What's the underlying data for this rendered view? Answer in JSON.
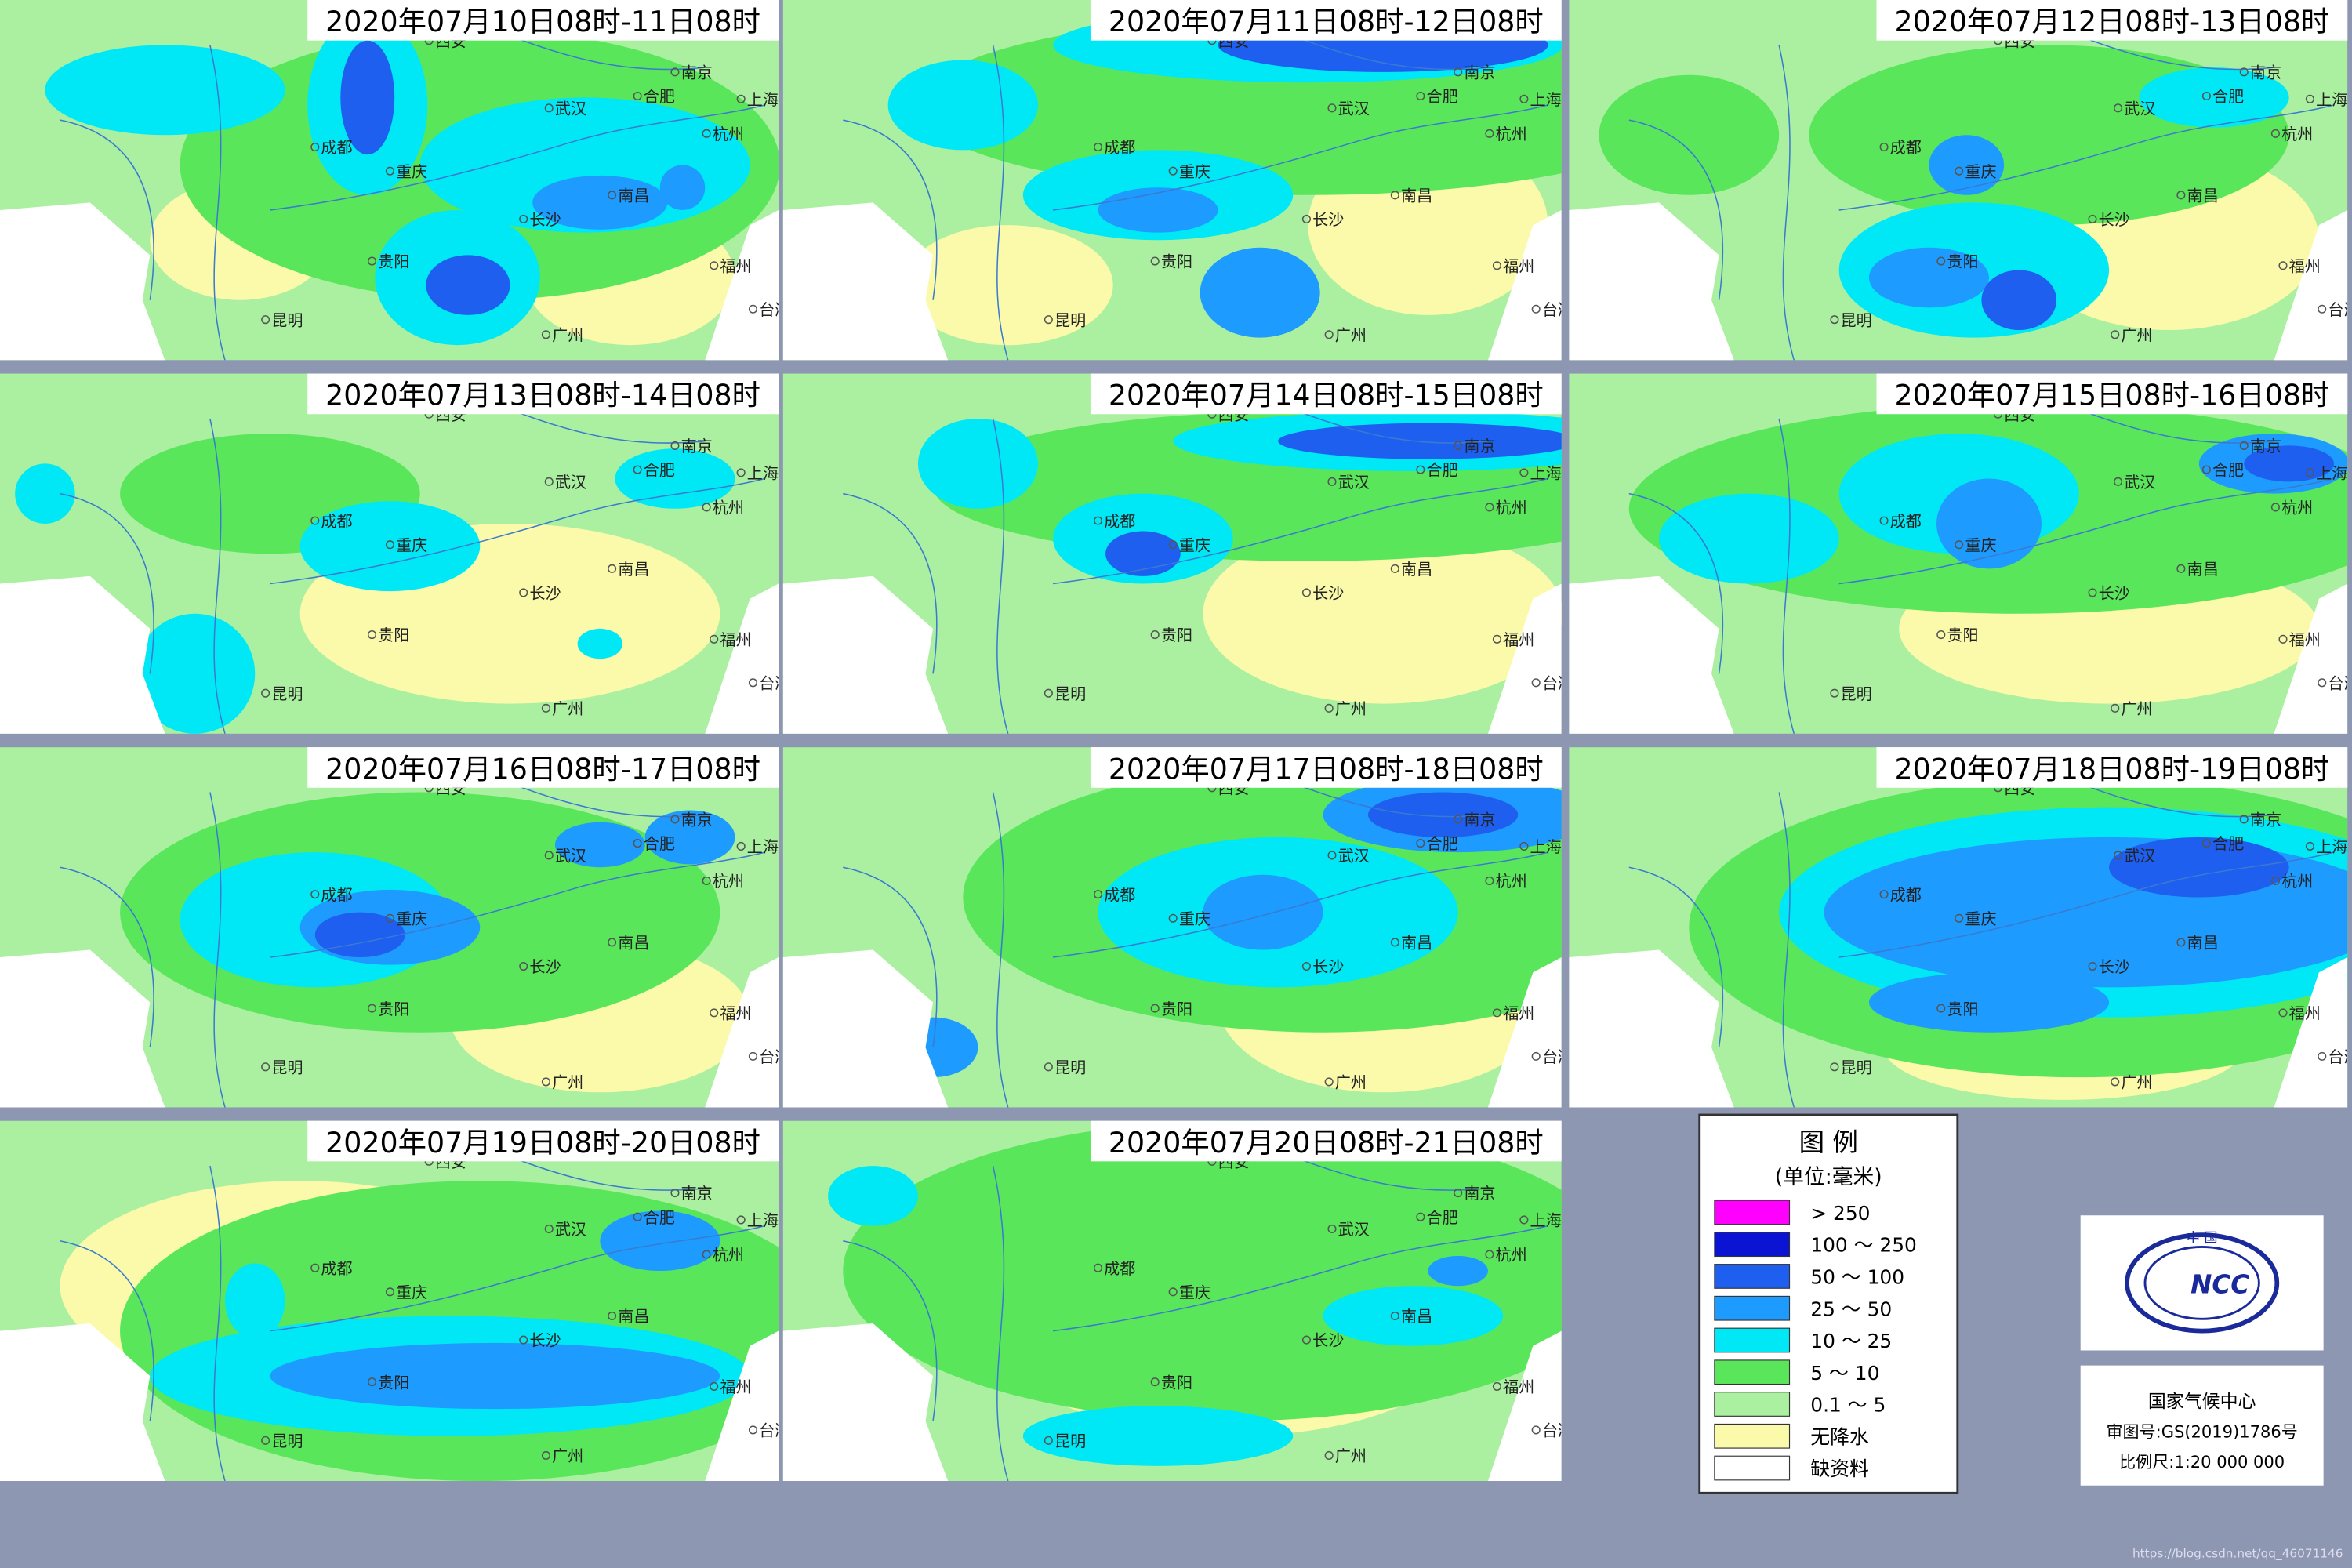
{
  "panels": [
    {
      "title": "2020年07月10日08时-11日08时"
    },
    {
      "title": "2020年07月11日08时-12日08时"
    },
    {
      "title": "2020年07月12日08时-13日08时"
    },
    {
      "title": "2020年07月13日08时-14日08时"
    },
    {
      "title": "2020年07月14日08时-15日08时"
    },
    {
      "title": "2020年07月15日08时-16日08时"
    },
    {
      "title": "2020年07月16日08时-17日08时"
    },
    {
      "title": "2020年07月17日08时-18日08时"
    },
    {
      "title": "2020年07月18日08时-19日08时"
    },
    {
      "title": "2020年07月19日08时-20日08时"
    },
    {
      "title": "2020年07月20日08时-21日08时"
    }
  ],
  "cities": [
    "西安",
    "南京",
    "合肥",
    "武汉",
    "上海",
    "成都",
    "重庆",
    "杭州",
    "长沙",
    "南昌",
    "贵阳",
    "福州",
    "昆明",
    "广州",
    "台湾"
  ],
  "legend": {
    "title": "图 例",
    "unit": "(单位:毫米)",
    "items": [
      {
        "label": "> 250",
        "color": "#ff00ff"
      },
      {
        "label": "100 ～ 250",
        "color": "#0a14d2"
      },
      {
        "label": "50 ～ 100",
        "color": "#1e5ff0"
      },
      {
        "label": "25 ～ 50",
        "color": "#1e9bff"
      },
      {
        "label": "10 ～ 25",
        "color": "#00e8f5"
      },
      {
        "label": "5 ～ 10",
        "color": "#5ae65a"
      },
      {
        "label": "0.1 ～ 5",
        "color": "#aaf0a0"
      },
      {
        "label": "无降水",
        "color": "#fafaaa"
      },
      {
        "label": "缺资料",
        "color": "#ffffff"
      }
    ]
  },
  "logo": {
    "top": "中 国",
    "mark": "NCC"
  },
  "info": {
    "org": "国家气候中心",
    "approval": "审图号:GS(2019)1786号",
    "scale": "比例尺:1:20 000 000"
  },
  "watermark": "https://blog.csdn.net/qq_46071146"
}
